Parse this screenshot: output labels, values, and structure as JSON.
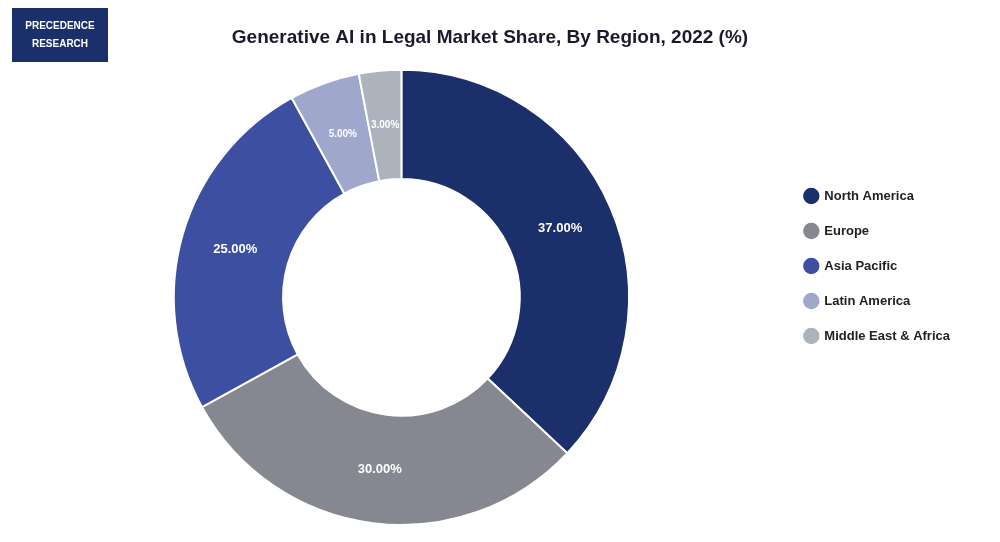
{
  "chart_data": {
    "type": "doughnut",
    "title": "Generative AI in Legal Market Share, By Region, 2022 (%)",
    "categories": [
      "North America",
      "Europe",
      "Asia Pacific",
      "Latin America",
      "Middle East & Africa"
    ],
    "values": [
      37,
      30,
      25,
      5,
      3
    ],
    "value_labels": [
      "37.00%",
      "30.00%",
      "25.00%",
      "5.00%",
      "3.00%"
    ],
    "colors": [
      "#1b2f6b",
      "#858891",
      "#3d4fa0",
      "#9fa8cc",
      "#adb3bc"
    ],
    "data_labels": true,
    "legend": "right",
    "annotations": [
      "PRECEDENCE",
      "RESEARCH"
    ]
  }
}
